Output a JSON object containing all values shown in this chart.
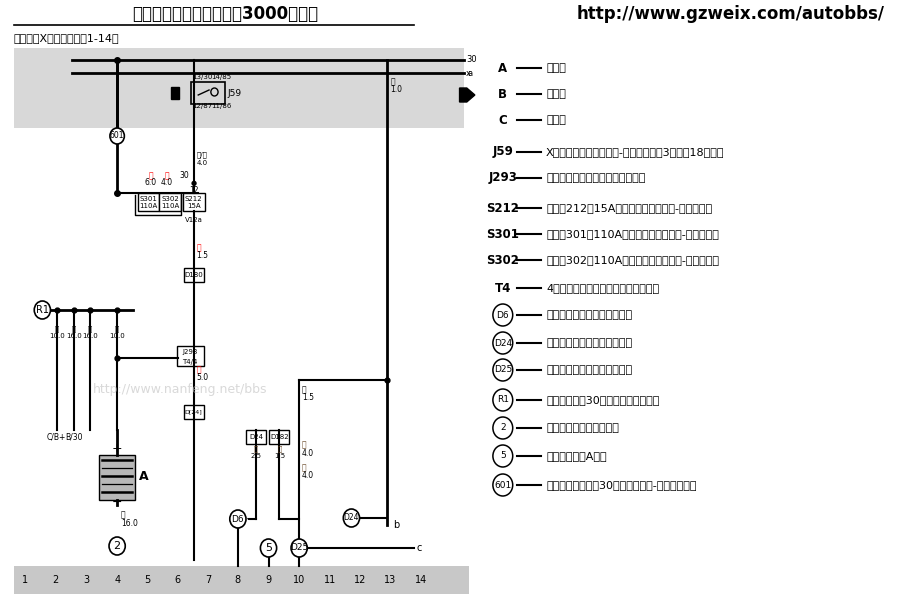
{
  "title": "基本电路电路图（桑塔纳3000轿车）",
  "url": "http://www.gzweix.com/autobbs/",
  "subtitle": "蓄电池、X触点继电器（1-14）",
  "legend_items": [
    {
      "label": "A",
      "circle": false,
      "desc": "蓄电池"
    },
    {
      "label": "B",
      "circle": false,
      "desc": "起动机"
    },
    {
      "label": "C",
      "circle": false,
      "desc": "发电机"
    },
    {
      "label": "J59",
      "circle": false,
      "desc": "X触点断电器，在继电器-保险丝支架上3号位（18继电器"
    },
    {
      "label": "J293",
      "circle": false,
      "desc": "散热风扇控制器，在发动机舱左侧"
    },
    {
      "label": "S212",
      "circle": false,
      "desc": "保险丝212，15A，在发动机舱继电器-保险丝盒内"
    },
    {
      "label": "S301",
      "circle": false,
      "desc": "保险丝301，110A，在发动机舱继电器-保险丝盒内"
    },
    {
      "label": "S302",
      "circle": false,
      "desc": "保险丝302，110A，在发动机舱继电器-保险丝盒内"
    },
    {
      "label": "T4",
      "circle": false,
      "desc": "4针插头，黑色，在散热风扇控制器上"
    },
    {
      "label": "D6",
      "circle": true,
      "desc": "接地连接线，在仪表板线束内"
    },
    {
      "label": "D24",
      "circle": true,
      "desc": "接地连接线，在仪表板线束内"
    },
    {
      "label": "D25",
      "circle": true,
      "desc": "接地连接线，在仪表板线束内"
    },
    {
      "label": "R1",
      "circle": true,
      "desc": "正极连接线（30），在发电机线束内"
    },
    {
      "label": "2",
      "circle": true,
      "desc": "接地点，在蓄电池支架上"
    },
    {
      "label": "5",
      "circle": true,
      "desc": "接地点，在左A柱上"
    },
    {
      "label": "601",
      "circle": true,
      "desc": "正极螺栓连接点（30），在继电器-保险丝支架上"
    }
  ],
  "col_numbers": [
    1,
    2,
    3,
    4,
    5,
    6,
    7,
    8,
    9,
    10,
    11,
    12,
    13,
    14
  ],
  "gray_band_top_color": "#d8d8d8",
  "gray_band_bot_color": "#c8c8c8",
  "watermark": "http://www.nanfeng.net/bbs",
  "watermark2": "http://www.nanfeng.net/bbs"
}
